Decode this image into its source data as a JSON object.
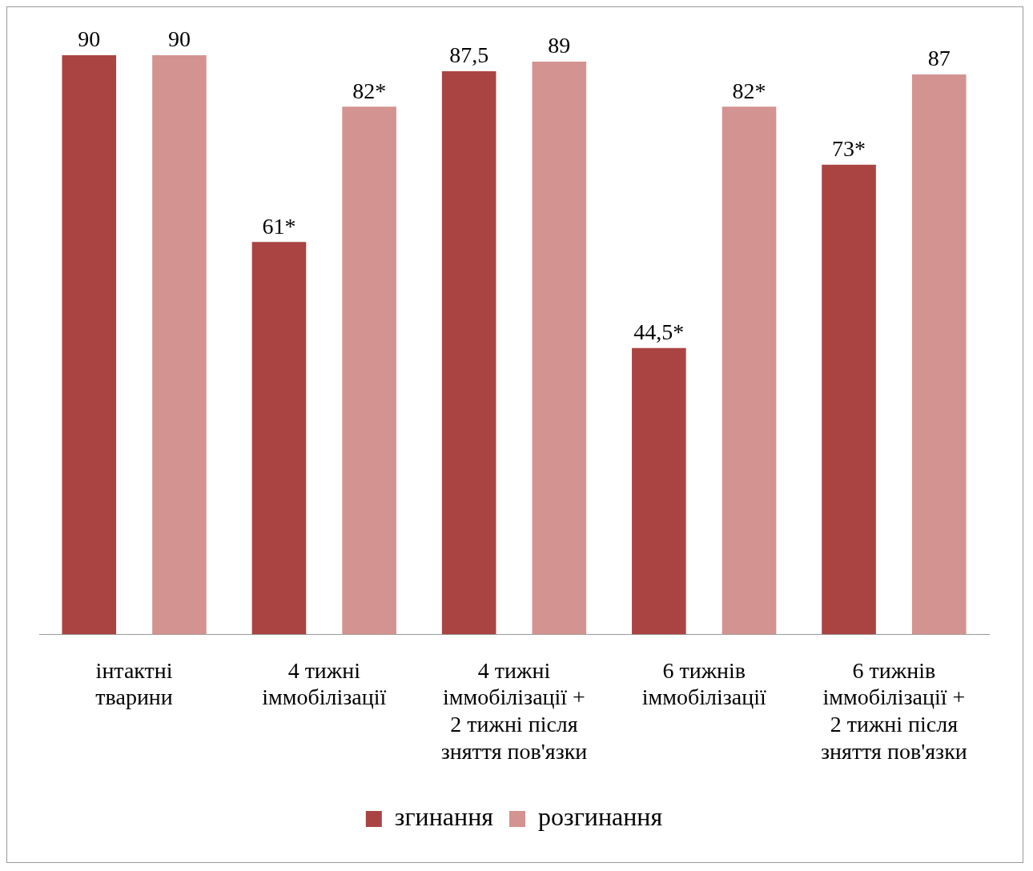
{
  "chart_data": {
    "type": "bar",
    "categories": [
      "інтактні тварини",
      "4 тижні іммобілізації",
      "4 тижні іммобілізації + 2 тижні після зняття пов'язки",
      "6 тижнів іммобілізації",
      "6 тижнів іммобілізації + 2 тижні після зняття пов'язки"
    ],
    "series": [
      {
        "name": "згинання",
        "color": "#a94442",
        "values": [
          90,
          61,
          87.5,
          44.5,
          73
        ],
        "value_labels": [
          "90",
          "61*",
          "87,5",
          "44,5*",
          "73*"
        ]
      },
      {
        "name": "розгинання",
        "color": "#d39391",
        "values": [
          90,
          82,
          89,
          82,
          87
        ],
        "value_labels": [
          "90",
          "82*",
          "89",
          "82*",
          "87"
        ]
      }
    ],
    "legend": "bottom",
    "grid": false
  }
}
